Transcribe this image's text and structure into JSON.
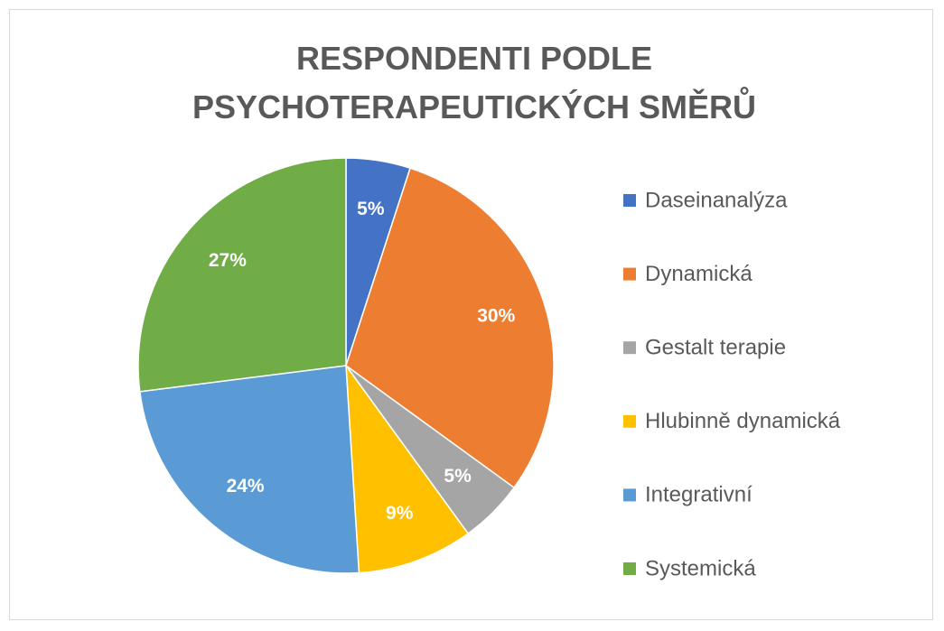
{
  "chart_data": {
    "type": "pie",
    "title": "RESPONDENTI PODLE\nPSYCHOTERAPEUTICKÝCH SMĚRŮ",
    "categories": [
      "Daseinanalýza",
      "Dynamická",
      "Gestalt terapie",
      "Hlubinně dynamická",
      "Integrativní",
      "Systemická"
    ],
    "values": [
      5,
      30,
      5,
      9,
      24,
      27
    ],
    "value_labels": [
      "5%",
      "30%",
      "5%",
      "9%",
      "24%",
      "27%"
    ],
    "colors": [
      "#4472c4",
      "#ed7d31",
      "#a5a5a5",
      "#ffc000",
      "#5b9bd5",
      "#70ad47"
    ],
    "legend": "right"
  }
}
